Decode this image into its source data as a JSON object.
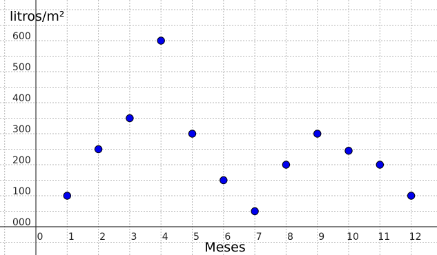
{
  "chart_data": {
    "type": "scatter",
    "title": "",
    "xlabel": "Meses",
    "ylabel": "litros/m²",
    "xlim": [
      -0.1,
      12.7
    ],
    "ylim": [
      -10,
      650
    ],
    "x_ticks": [
      "0",
      "1",
      "2",
      "3",
      "4",
      "5",
      "6",
      "7",
      "8",
      "9",
      "10",
      "11",
      "12"
    ],
    "y_ticks": [
      "000",
      "100",
      "200",
      "300",
      "400",
      "500",
      "600"
    ],
    "grid": true,
    "legend": "none",
    "point_color": "#0000ee",
    "series": [
      {
        "x": [
          1,
          2,
          3,
          4,
          5,
          6,
          7,
          8,
          9,
          10,
          11,
          12
        ],
        "y": [
          100,
          250,
          350,
          600,
          300,
          150,
          50,
          200,
          300,
          245,
          200,
          100
        ]
      }
    ]
  }
}
